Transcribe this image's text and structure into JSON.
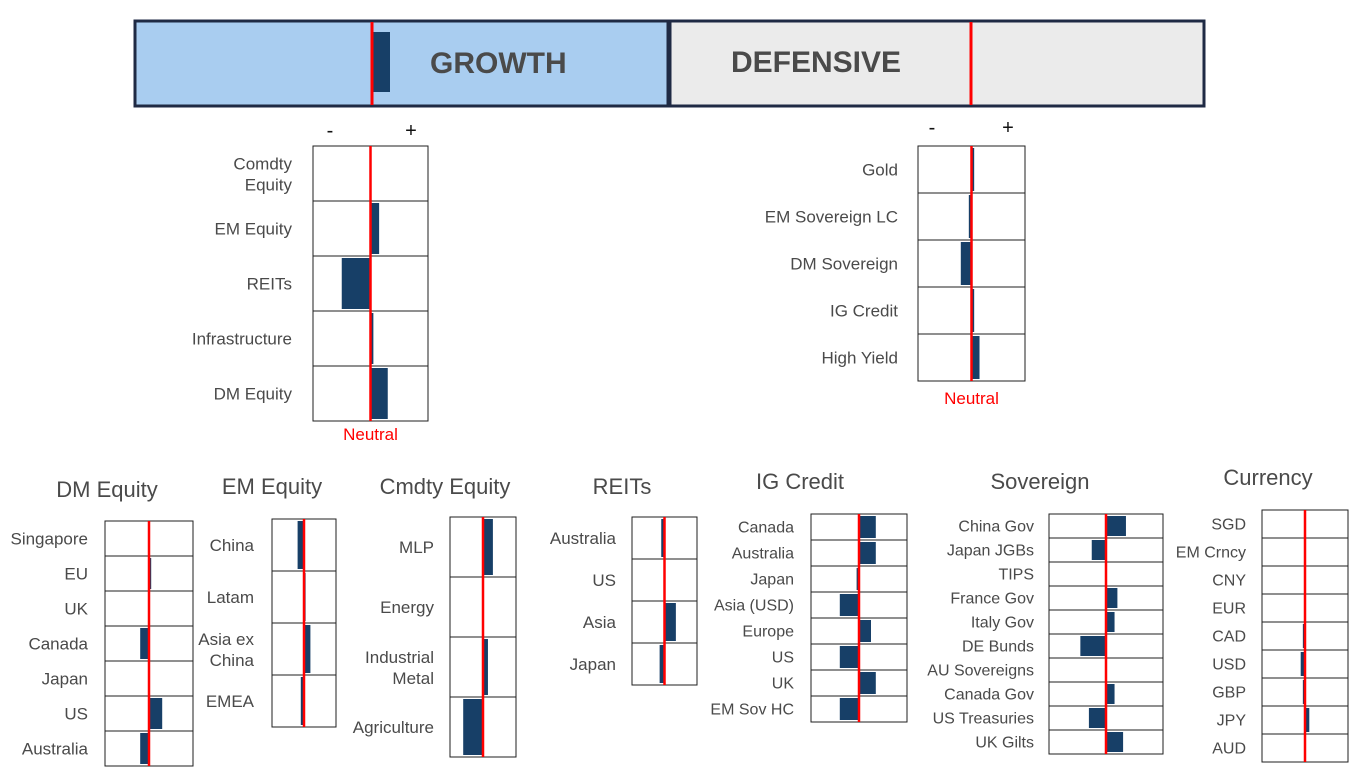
{
  "header": {
    "growth_label": "GROWTH",
    "defensive_label": "DEFENSIVE",
    "growth_color": "#a9cdf0",
    "defensive_color": "#ebebeb",
    "border_color": "#1f2a44",
    "growth_tilt": 0.4,
    "defensive_tilt": 0.0
  },
  "colors": {
    "bar": "#173f67",
    "neutral_line": "#ff0000",
    "grid": "#1f1f1f",
    "text": "#3a3a3a"
  },
  "signs": {
    "minus": "-",
    "plus": "+"
  },
  "neutral_label": "Neutral",
  "chart_data": [
    {
      "type": "bar",
      "id": "growth",
      "categories": [
        "Comdty Equity",
        "EM Equity",
        "REITs",
        "Infrastructure",
        "DM Equity"
      ],
      "values": [
        0.0,
        0.15,
        -0.5,
        0.05,
        0.3
      ],
      "xlim": [
        -1,
        1
      ]
    },
    {
      "type": "bar",
      "id": "defensive",
      "categories": [
        "Gold",
        "EM Sovereign LC",
        "DM Sovereign",
        "IG Credit",
        "High Yield"
      ],
      "values": [
        0.05,
        -0.05,
        -0.2,
        0.05,
        0.15
      ],
      "xlim": [
        -1,
        1
      ]
    },
    {
      "type": "bar",
      "id": "dm-equity",
      "title": "DM Equity",
      "categories": [
        "Singapore",
        "EU",
        "UK",
        "Canada",
        "Japan",
        "US",
        "Australia"
      ],
      "values": [
        0.0,
        0.05,
        0.0,
        -0.2,
        0.0,
        0.3,
        -0.2
      ],
      "xlim": [
        -1,
        1
      ]
    },
    {
      "type": "bar",
      "id": "em-equity",
      "title": "EM Equity",
      "categories": [
        "China",
        "Latam",
        "Asia ex China",
        "EMEA"
      ],
      "values": [
        -0.2,
        0.05,
        0.2,
        -0.1
      ],
      "xlim": [
        -1,
        1
      ]
    },
    {
      "type": "bar",
      "id": "comdty-equity",
      "title": "Cmdty Equity",
      "categories": [
        "MLP",
        "Energy",
        "Industrial Metal",
        "Agriculture"
      ],
      "values": [
        0.3,
        0.0,
        0.15,
        -0.6
      ],
      "xlim": [
        -1,
        1
      ]
    },
    {
      "type": "bar",
      "id": "reits",
      "title": "REITs",
      "categories": [
        "Australia",
        "US",
        "Asia",
        "Japan"
      ],
      "values": [
        -0.1,
        0.0,
        0.35,
        -0.15
      ],
      "xlim": [
        -1,
        1
      ]
    },
    {
      "type": "bar",
      "id": "ig-credit",
      "title": "IG Credit",
      "categories": [
        "Canada",
        "Australia",
        "Japan",
        "Asia (USD)",
        "Europe",
        "US",
        "UK",
        "EM Sov HC"
      ],
      "values": [
        0.35,
        0.35,
        -0.05,
        -0.4,
        0.25,
        -0.4,
        0.35,
        -0.4
      ],
      "xlim": [
        -1,
        1
      ]
    },
    {
      "type": "bar",
      "id": "sovereign",
      "title": "Sovereign",
      "categories": [
        "China Gov",
        "Japan JGBs",
        "TIPS",
        "France Gov",
        "Italy Gov",
        "DE Bunds",
        "AU Sovereigns",
        "Canada Gov",
        "US Treasuries",
        "UK Gilts"
      ],
      "values": [
        0.35,
        -0.25,
        0.0,
        0.2,
        0.15,
        -0.45,
        0.0,
        0.15,
        -0.3,
        0.3
      ],
      "xlim": [
        -1,
        1
      ]
    },
    {
      "type": "bar",
      "id": "currency",
      "title": "Currency",
      "categories": [
        "SGD",
        "EM Crncy",
        "CNY",
        "EUR",
        "CAD",
        "USD",
        "GBP",
        "JPY",
        "AUD"
      ],
      "values": [
        0.0,
        0.0,
        0.0,
        0.0,
        -0.05,
        -0.1,
        -0.05,
        0.1,
        0.0
      ],
      "xlim": [
        -1,
        1
      ]
    }
  ]
}
